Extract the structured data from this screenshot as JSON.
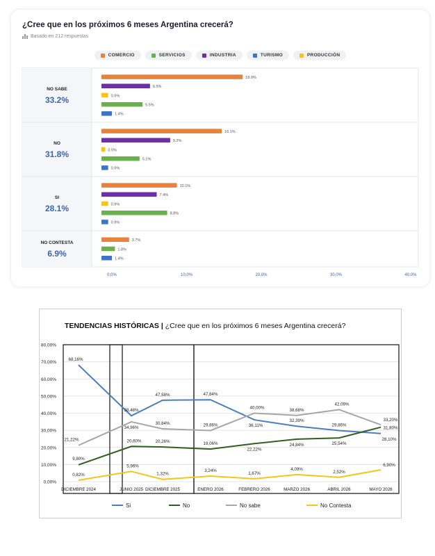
{
  "chart_data": [
    {
      "type": "bar",
      "title": "¿Cree que en los próximos 6 meses Argentina crecerá?",
      "subtitle": "Basado en 212 respuestas",
      "legend": [
        "COMERCIO",
        "SERVICIOS",
        "INDUSTRIA",
        "TURISMO",
        "PRODUCCIÓN"
      ],
      "colors": {
        "COMERCIO": "#e8813a",
        "SERVICIOS": "#6ab04c",
        "INDUSTRIA": "#6b2fa6",
        "TURISMO": "#3f74c4",
        "PRODUCCIÓN": "#f5c518"
      },
      "xlim": [
        0,
        40
      ],
      "xticks": [
        "0,0%",
        "10,0%",
        "20,0%",
        "30,0%",
        "40,0%"
      ],
      "groups": [
        {
          "label": "NO SABE",
          "total": "33.2%",
          "bars": [
            {
              "series": "COMERCIO",
              "value": 18.9,
              "label": "18.9%"
            },
            {
              "series": "INDUSTRIA",
              "value": 6.5,
              "label": "6.5%"
            },
            {
              "series": "PRODUCCIÓN",
              "value": 0.9,
              "label": "0.9%"
            },
            {
              "series": "SERVICIOS",
              "value": 5.5,
              "label": "5.5%"
            },
            {
              "series": "TURISMO",
              "value": 1.4,
              "label": "1.4%"
            }
          ]
        },
        {
          "label": "NO",
          "total": "31.8%",
          "bars": [
            {
              "series": "COMERCIO",
              "value": 16.1,
              "label": "16.1%"
            },
            {
              "series": "INDUSTRIA",
              "value": 9.2,
              "label": "9.2%"
            },
            {
              "series": "PRODUCCIÓN",
              "value": 0.5,
              "label": "0.5%"
            },
            {
              "series": "SERVICIOS",
              "value": 5.1,
              "label": "5.1%"
            },
            {
              "series": "TURISMO",
              "value": 0.9,
              "label": "0.9%"
            }
          ]
        },
        {
          "label": "SI",
          "total": "28.1%",
          "bars": [
            {
              "series": "COMERCIO",
              "value": 10.1,
              "label": "10.1%"
            },
            {
              "series": "INDUSTRIA",
              "value": 7.4,
              "label": "7.4%"
            },
            {
              "series": "PRODUCCIÓN",
              "value": 0.9,
              "label": "0.9%"
            },
            {
              "series": "SERVICIOS",
              "value": 8.8,
              "label": "8.8%"
            },
            {
              "series": "TURISMO",
              "value": 0.9,
              "label": "0.9%"
            }
          ]
        },
        {
          "label": "NO CONTESTA",
          "total": "6.9%",
          "bars": [
            {
              "series": "COMERCIO",
              "value": 3.7,
              "label": "3.7%"
            },
            {
              "series": "SERVICIOS",
              "value": 1.8,
              "label": "1.8%"
            },
            {
              "series": "TURISMO",
              "value": 1.4,
              "label": "1.4%"
            }
          ]
        }
      ]
    },
    {
      "type": "line",
      "title_bold": "TENDENCIAS HISTÓRICAS |",
      "title_rest": "¿Cree que en los próximos 6 meses Argentina crecerá?",
      "categories": [
        "DICIEMBRE 2024",
        "JUNIO 2025",
        "DICIEMBRE 2025",
        "ENERO 2026",
        "FEBRERO 2026",
        "MARZO 2026",
        "ABRIL 2026",
        "MAYO 2026"
      ],
      "ylim": [
        0,
        80
      ],
      "yticks": [
        "0,00%",
        "10,00%",
        "20,00%",
        "30,00%",
        "40,00%",
        "50,00%",
        "60,00%",
        "70,00%",
        "80,00%"
      ],
      "grid": true,
      "series": [
        {
          "name": "Si",
          "color": "#4a7ec2",
          "values": [
            68.16,
            38.48,
            47.58,
            47.84,
            36.11,
            32.39,
            29.86,
            28.1
          ],
          "labels": [
            "68,16%",
            "38,48%",
            "47,58%",
            "47,84%",
            "36,11%",
            "32,39%",
            "29,86%",
            "28,10%"
          ]
        },
        {
          "name": "No",
          "color": "#2f5e1f",
          "values": [
            9.8,
            20.6,
            20.26,
            19.06,
            22.22,
            24.84,
            25.54,
            31.8
          ],
          "labels": [
            "9,80%",
            "20,60%",
            "20,26%",
            "19,06%",
            "22,22%",
            "24,84%",
            "25,54%",
            "31,80%"
          ]
        },
        {
          "name": "No sabe",
          "color": "#a6a6a6",
          "values": [
            21.22,
            34.96,
            30.84,
            29.86,
            40.0,
            38.68,
            42.09,
            33.2
          ],
          "labels": [
            "21,22%",
            "34,96%",
            "30,84%",
            "29,86%",
            "40,00%",
            "38,68%",
            "42,09%",
            "33,20%"
          ]
        },
        {
          "name": "No Contesta",
          "color": "#f5c518",
          "values": [
            0.82,
            5.96,
            1.32,
            3.24,
            1.67,
            4.09,
            2.52,
            6.9
          ],
          "labels": [
            "0,82%",
            "5,96%",
            "1,32%",
            "3,24%",
            "1,67%",
            "4,09%",
            "2,52%",
            "6,90%"
          ]
        }
      ],
      "legend_placement": "bottom"
    }
  ]
}
